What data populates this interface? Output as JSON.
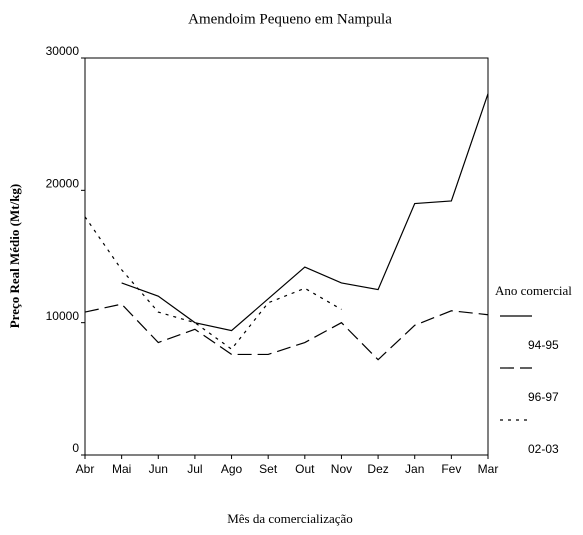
{
  "chart_data": {
    "type": "line",
    "title": "Amendoim Pequeno em Nampula",
    "x_label": "Mês da comercialização",
    "y_label": "Preço Real Médio (Mt/kg)",
    "legend_title": "Ano comercial",
    "categories": [
      "Abr",
      "Mai",
      "Jun",
      "Jul",
      "Ago",
      "Set",
      "Out",
      "Nov",
      "Dez",
      "Jan",
      "Fev",
      "Mar"
    ],
    "series": [
      {
        "name": "94-95",
        "color": "#000000",
        "dash": "solid",
        "values": [
          null,
          13000,
          12000,
          10000,
          9400,
          11800,
          14200,
          13000,
          12500,
          19000,
          19200,
          27300
        ]
      },
      {
        "name": "96-97",
        "color": "#000000",
        "dash": "dashed",
        "values": [
          10800,
          11400,
          8500,
          9500,
          7600,
          7600,
          8500,
          10000,
          7200,
          9800,
          10900,
          10600
        ]
      },
      {
        "name": "02-03",
        "color": "#000000",
        "dash": "dotted",
        "values": [
          18000,
          14000,
          10800,
          10000,
          8000,
          11500,
          12600,
          11000,
          null,
          null,
          null,
          null
        ]
      }
    ],
    "ylim": [
      0,
      30000
    ],
    "yticks": [
      0,
      10000,
      20000,
      30000
    ],
    "grid": false,
    "legend": "right"
  }
}
